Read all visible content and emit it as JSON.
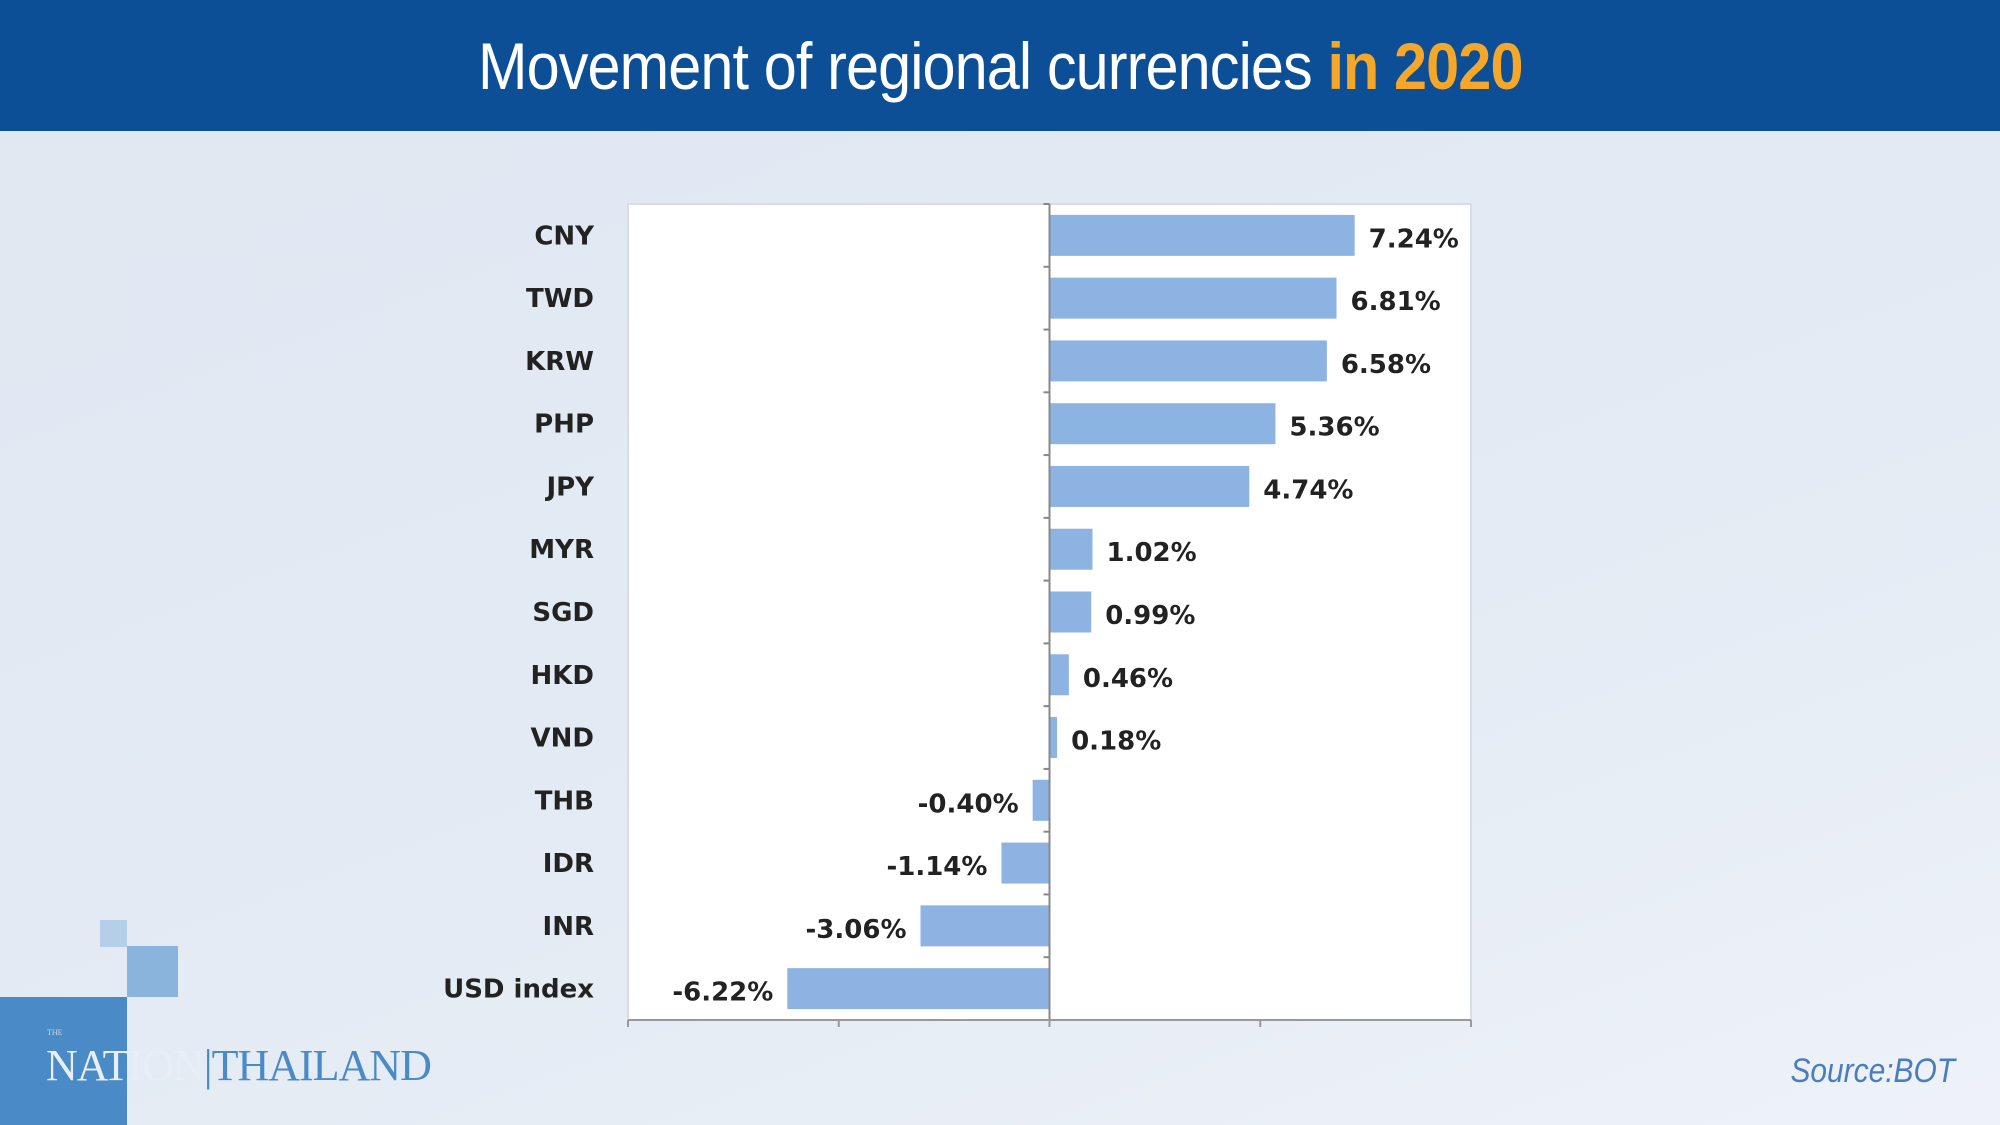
{
  "header": {
    "title_main": "Movement of regional currencies",
    "title_highlight": "in 2020"
  },
  "colors": {
    "header_bg": "#0d4f96",
    "highlight": "#f5a72a",
    "bar": "#8db3e2",
    "logo": "#4a8ac6"
  },
  "logo": {
    "small": "THE",
    "text_a": "NATION",
    "text_b": "|THAILAND"
  },
  "source": "Source:BOT",
  "chart_data": {
    "type": "bar",
    "orientation": "horizontal",
    "categories": [
      "CNY",
      "TWD",
      "KRW",
      "PHP",
      "JPY",
      "MYR",
      "SGD",
      "HKD",
      "VND",
      "THB",
      "IDR",
      "INR",
      "USD index"
    ],
    "values": [
      7.24,
      6.81,
      6.58,
      5.36,
      4.74,
      1.02,
      0.99,
      0.46,
      0.18,
      -0.4,
      -1.14,
      -3.06,
      -6.22
    ],
    "data_labels": [
      "7.24%",
      "6.81%",
      "6.58%",
      "5.36%",
      "4.74%",
      "1.02%",
      "0.99%",
      "0.46%",
      "0.18%",
      "-0.40%",
      "-1.14%",
      "-3.06%",
      "-6.22%"
    ],
    "xlim": [
      -10,
      10
    ],
    "x_ticks": [
      -10,
      -5,
      0,
      5,
      10
    ],
    "x_tick_labels_shown": false,
    "grid": false,
    "legend": "none"
  }
}
